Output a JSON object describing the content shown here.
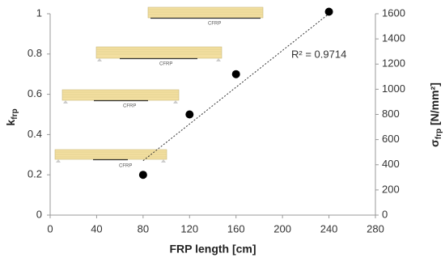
{
  "chart_data": {
    "type": "scatter",
    "x_label": "FRP length [cm]",
    "y_label": [
      "k",
      "frp"
    ],
    "y2_label": [
      "σ",
      "frp",
      " [N/mm²]"
    ],
    "x": [
      80,
      120,
      160,
      240
    ],
    "series": [
      {
        "color": "#000000",
        "values": [
          0.2,
          0.5,
          0.7,
          1.01
        ]
      }
    ],
    "xlim": [
      0,
      280
    ],
    "xticks": [
      0,
      40,
      80,
      120,
      160,
      200,
      240,
      280
    ],
    "ylim": [
      0,
      1
    ],
    "yticks": [
      0,
      0.2,
      0.4,
      0.6,
      0.8,
      1
    ],
    "y2lim": [
      0,
      1600
    ],
    "y2ticks": [
      0,
      200,
      400,
      600,
      800,
      1000,
      1200,
      1400,
      1600
    ],
    "trendline": {
      "x": [
        80,
        240
      ],
      "y": [
        0.27,
        1.0
      ],
      "label": "R² = 0.9714"
    },
    "annotations": [
      "CFRP",
      "CFRP",
      "CFRP",
      "CFRP"
    ]
  }
}
